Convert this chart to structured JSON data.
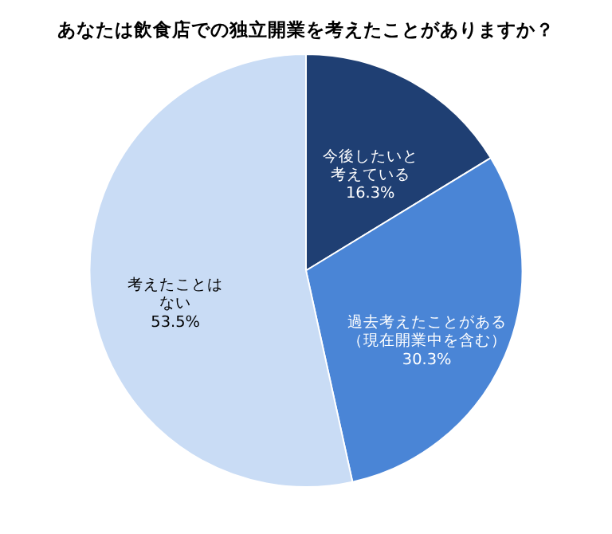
{
  "chart_data": {
    "type": "pie",
    "title": "あなたは飲食店での独立開業を考えたことがありますか？",
    "categories": [
      "今後したいと考えている",
      "過去考えたことがある（現在開業中を含む）",
      "考えたことはない"
    ],
    "values": [
      16.3,
      30.3,
      53.5
    ],
    "value_labels": [
      "16.3%",
      "30.3%",
      "53.5%"
    ],
    "colors": [
      "#1f3f73",
      "#4a85d6",
      "#c9dcf5"
    ],
    "legend": false
  }
}
